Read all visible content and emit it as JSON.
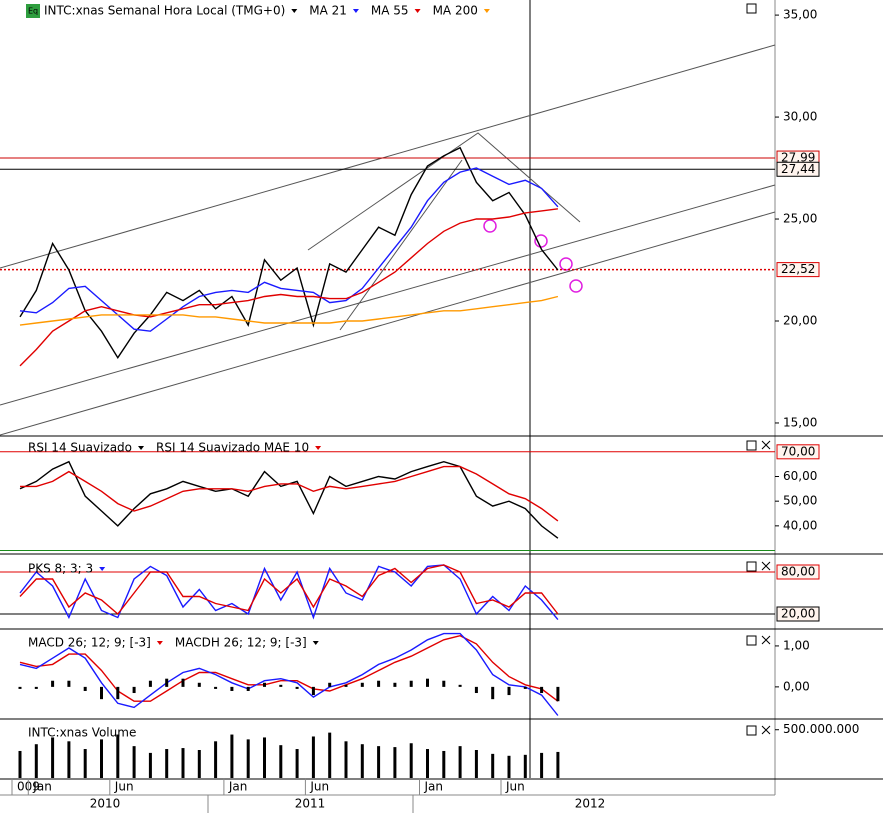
{
  "chart_data": [
    {
      "type": "line",
      "badge": "Eq",
      "ylim": [
        14.41,
        35.74
      ],
      "yticks": [
        {
          "value": 15,
          "label": "15,00"
        },
        {
          "value": 20,
          "label": "20,00"
        },
        {
          "value": 25,
          "label": "25,00"
        },
        {
          "value": 30,
          "label": "30,00"
        },
        {
          "value": 35,
          "label": "35,00"
        }
      ],
      "levels": [
        {
          "value": 27.99,
          "label": "27,99",
          "color": "#cc0000",
          "style": "solid"
        },
        {
          "value": 27.44,
          "label": "27,44",
          "color": "#000000",
          "style": "solid"
        },
        {
          "value": 22.52,
          "label": "22,52",
          "color": "#dd0000",
          "style": "dotted"
        }
      ],
      "series": [
        {
          "name": "INTC:xnas Semanal Hora Local (TMG+0)",
          "color": "#000000",
          "values": [
            20.2,
            21.5,
            23.8,
            22.5,
            20.5,
            19.5,
            18.2,
            19.4,
            20.3,
            21.4,
            21.0,
            21.5,
            20.6,
            21.2,
            19.8,
            23.0,
            22.0,
            22.6,
            19.8,
            22.8,
            22.4,
            23.5,
            24.6,
            24.2,
            26.2,
            27.6,
            28.1,
            28.5,
            26.8,
            25.9,
            26.3,
            25.2,
            23.5,
            22.5
          ]
        },
        {
          "name": "MA 21",
          "color": "#1a1aff",
          "values": [
            20.5,
            20.4,
            20.9,
            21.6,
            21.7,
            21.0,
            20.3,
            19.6,
            19.5,
            20.1,
            20.7,
            21.2,
            21.4,
            21.5,
            21.4,
            21.9,
            21.6,
            21.5,
            21.4,
            20.9,
            21.0,
            21.6,
            22.6,
            23.6,
            24.6,
            25.9,
            26.8,
            27.3,
            27.5,
            27.1,
            26.7,
            26.9,
            26.5,
            25.6
          ]
        },
        {
          "name": "MA 55",
          "color": "#e00000",
          "values": [
            17.8,
            18.6,
            19.5,
            20.0,
            20.5,
            20.7,
            20.5,
            20.3,
            20.2,
            20.4,
            20.6,
            20.8,
            20.8,
            20.9,
            21.0,
            21.2,
            21.3,
            21.2,
            21.2,
            21.1,
            21.1,
            21.4,
            21.9,
            22.4,
            23.1,
            23.8,
            24.4,
            24.8,
            25.0,
            25.0,
            25.1,
            25.3,
            25.4,
            25.5
          ]
        },
        {
          "name": "MA 200",
          "color": "#ff9900",
          "values": [
            19.8,
            19.9,
            20.0,
            20.1,
            20.2,
            20.3,
            20.3,
            20.3,
            20.3,
            20.3,
            20.3,
            20.2,
            20.2,
            20.1,
            20.0,
            19.9,
            19.9,
            19.9,
            19.9,
            19.9,
            20.0,
            20.0,
            20.1,
            20.2,
            20.3,
            20.4,
            20.5,
            20.5,
            20.6,
            20.7,
            20.8,
            20.9,
            21.0,
            21.2
          ]
        }
      ]
    },
    {
      "type": "line",
      "ylim": [
        29,
        76
      ],
      "yticks": [
        {
          "value": 40,
          "label": "40,00"
        },
        {
          "value": 50,
          "label": "50,00"
        },
        {
          "value": 60,
          "label": "60,00"
        }
      ],
      "levels": [
        {
          "value": 70,
          "label": "70,00",
          "color": "#e00000",
          "style": "solid"
        },
        {
          "value": 30,
          "color": "#1a8a1a",
          "style": "solid"
        }
      ],
      "series": [
        {
          "name": "RSI 14 Suavizado",
          "color": "#000000",
          "values": [
            55,
            58,
            63,
            66,
            52,
            46,
            40,
            47,
            53,
            55,
            58,
            56,
            54,
            55,
            52,
            62,
            56,
            58,
            45,
            60,
            56,
            58,
            60,
            59,
            62,
            64,
            66,
            64,
            52,
            48,
            50,
            47,
            40,
            35
          ]
        },
        {
          "name": "RSI 14 Suavizado MAE 10",
          "color": "#e00000",
          "values": [
            56,
            56,
            58,
            62,
            58,
            54,
            49,
            46,
            48,
            51,
            54,
            55,
            55,
            55,
            54,
            56,
            57,
            57,
            54,
            56,
            55,
            56,
            57,
            58,
            60,
            62,
            64,
            64,
            61,
            57,
            53,
            51,
            47,
            42
          ]
        }
      ]
    },
    {
      "type": "line",
      "ylim": [
        0,
        100
      ],
      "levels": [
        {
          "value": 80,
          "label": "80,00",
          "color": "#e00000",
          "style": "solid"
        },
        {
          "value": 20,
          "label": "20,00",
          "color": "#000000",
          "style": "solid"
        }
      ],
      "series": [
        {
          "name": "PKS 8; 3; 3",
          "color": "#1a1aff",
          "values": [
            50,
            80,
            60,
            15,
            70,
            25,
            15,
            70,
            88,
            75,
            30,
            55,
            25,
            35,
            20,
            85,
            40,
            80,
            15,
            85,
            50,
            40,
            88,
            80,
            60,
            88,
            90,
            70,
            20,
            45,
            25,
            60,
            40,
            12
          ]
        },
        {
          "color": "#e00000",
          "values": [
            45,
            70,
            70,
            30,
            50,
            40,
            20,
            50,
            80,
            80,
            45,
            45,
            35,
            30,
            25,
            70,
            50,
            70,
            30,
            70,
            60,
            45,
            75,
            85,
            65,
            85,
            90,
            80,
            35,
            40,
            30,
            50,
            50,
            20
          ]
        }
      ]
    },
    {
      "type": "line",
      "ylim": [
        -0.76,
        1.34
      ],
      "yticks": [
        {
          "value": 1,
          "label": "1,00"
        },
        {
          "value": 0,
          "label": "0,00"
        }
      ],
      "series": [
        {
          "name": "MACD 26; 12; 9; [-3]",
          "color": "#e00000",
          "values": [
            0.6,
            0.5,
            0.55,
            0.8,
            0.8,
            0.4,
            -0.1,
            -0.35,
            -0.35,
            -0.1,
            0.15,
            0.35,
            0.35,
            0.2,
            0.05,
            0.05,
            0.15,
            0.15,
            -0.05,
            -0.1,
            0.05,
            0.2,
            0.4,
            0.6,
            0.75,
            0.95,
            1.15,
            1.25,
            1.05,
            0.6,
            0.25,
            0.05,
            -0.05,
            -0.35
          ]
        },
        {
          "color": "#1a1aff",
          "values": [
            0.55,
            0.45,
            0.7,
            0.95,
            0.7,
            0.1,
            -0.4,
            -0.5,
            -0.2,
            0.1,
            0.35,
            0.45,
            0.3,
            0.1,
            -0.05,
            0.15,
            0.2,
            0.1,
            -0.25,
            0.0,
            0.1,
            0.3,
            0.55,
            0.7,
            0.9,
            1.15,
            1.3,
            1.3,
            0.9,
            0.3,
            0.05,
            0.0,
            -0.2,
            -0.7
          ]
        },
        {
          "name": "MACDH 26; 12; 9; [-3]",
          "type": "bar",
          "color": "#000000",
          "values": [
            -0.05,
            -0.05,
            0.15,
            0.15,
            -0.1,
            -0.3,
            -0.3,
            -0.15,
            0.15,
            0.2,
            0.2,
            0.1,
            -0.05,
            -0.1,
            -0.1,
            0.1,
            0.05,
            -0.05,
            -0.2,
            0.1,
            0.05,
            0.1,
            0.15,
            0.1,
            0.15,
            0.2,
            0.15,
            0.05,
            -0.15,
            -0.3,
            -0.2,
            -0.05,
            -0.15,
            -0.35
          ]
        }
      ]
    },
    {
      "type": "bar",
      "ylim": [
        0,
        580000000
      ],
      "yticks": [
        {
          "value": 500000000,
          "label": "500.000.000"
        }
      ],
      "categories": [
        "009",
        "Jan",
        null,
        null,
        null,
        null,
        "Jun",
        null,
        null,
        null,
        null,
        null,
        null,
        "Jan",
        null,
        null,
        null,
        null,
        "Jun",
        null,
        null,
        null,
        null,
        null,
        null,
        "Jan",
        null,
        null,
        null,
        null,
        "Jun",
        null,
        null,
        null
      ],
      "x_groups": [
        "2010",
        "2011",
        "2012"
      ],
      "series": [
        {
          "name": "INTC:xnas Volume",
          "type": "bar",
          "color": "#000000",
          "values": [
            280000000,
            350000000,
            420000000,
            380000000,
            300000000,
            400000000,
            450000000,
            330000000,
            260000000,
            300000000,
            310000000,
            290000000,
            380000000,
            450000000,
            400000000,
            420000000,
            340000000,
            300000000,
            430000000,
            470000000,
            380000000,
            350000000,
            330000000,
            320000000,
            360000000,
            300000000,
            280000000,
            330000000,
            290000000,
            250000000,
            230000000,
            240000000,
            260000000,
            270000000
          ]
        }
      ]
    }
  ]
}
